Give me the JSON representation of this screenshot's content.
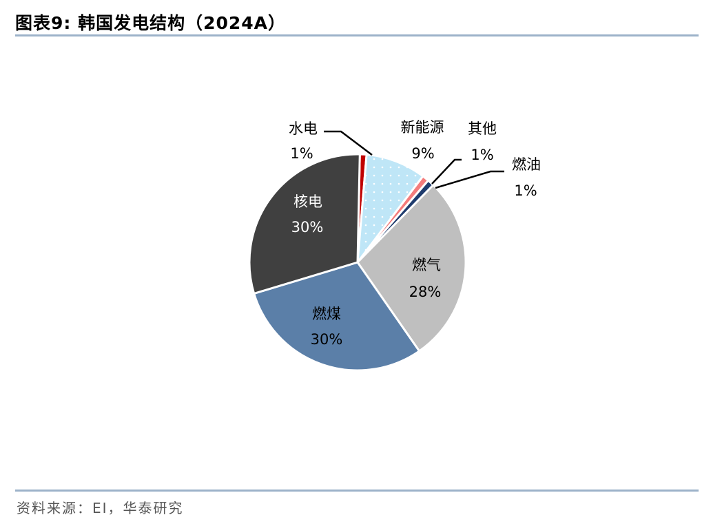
{
  "title": "图表9:  韩国发电结构（2024A）",
  "source": "资料来源：EI，华泰研究",
  "chart_data": {
    "type": "pie",
    "title": "韩国发电结构（2024A）",
    "categories": [
      "水电",
      "新能源",
      "其他",
      "燃油",
      "燃气",
      "燃煤",
      "核电"
    ],
    "values": [
      1,
      9,
      1,
      1,
      28,
      30,
      30
    ],
    "labels": [
      "1%",
      "9%",
      "1%",
      "1%",
      "28%",
      "30%",
      "30%"
    ],
    "colors": [
      "#c00000",
      "#bfe6f7",
      "#f47c7c",
      "#1f3c6e",
      "#bfbfbf",
      "#5b7fa8",
      "#404040"
    ]
  },
  "labels": {
    "hydro": {
      "name": "水电",
      "pct": "1%"
    },
    "renew": {
      "name": "新能源",
      "pct": "9%"
    },
    "other": {
      "name": "其他",
      "pct": "1%"
    },
    "oil": {
      "name": "燃油",
      "pct": "1%"
    },
    "gas": {
      "name": "燃气",
      "pct": "28%"
    },
    "coal": {
      "name": "燃煤",
      "pct": "30%"
    },
    "nuclear": {
      "name": "核电",
      "pct": "30%"
    }
  }
}
